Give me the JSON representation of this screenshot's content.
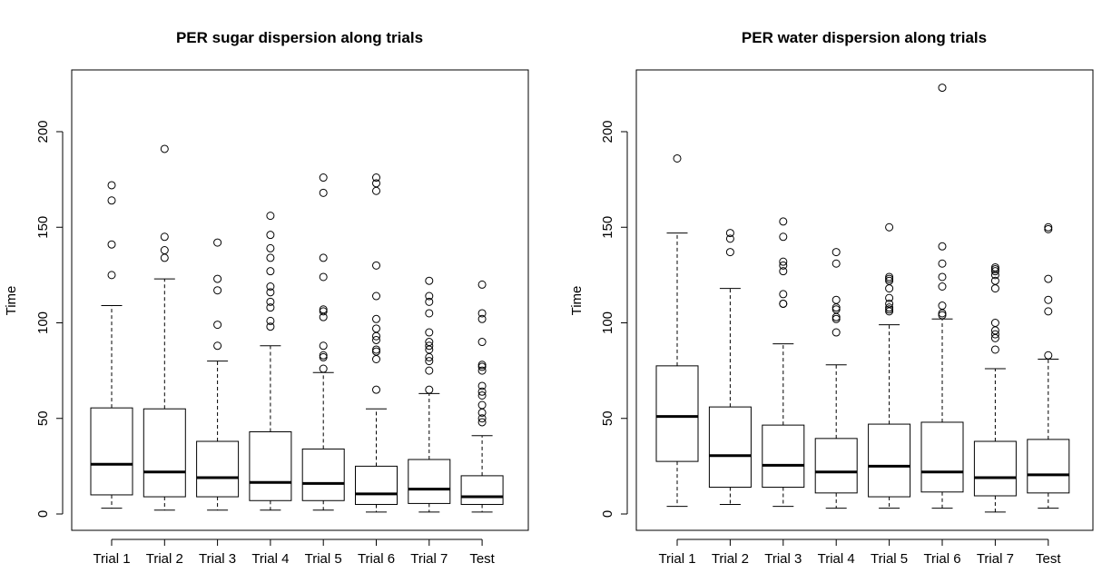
{
  "chart_data": [
    {
      "type": "box",
      "title": "PER sugar dispersion along trials",
      "xlabel": "",
      "ylabel": "Time",
      "ylim": [
        0,
        230
      ],
      "yticks": [
        0,
        50,
        100,
        150,
        200
      ],
      "categories": [
        "Trial 1",
        "Trial 2",
        "Trial 3",
        "Trial 4",
        "Trial 5",
        "Trial 6",
        "Trial 7",
        "Test"
      ],
      "boxes": [
        {
          "min": 3,
          "q1": 10,
          "median": 26,
          "q3": 55.5,
          "max": 109,
          "outliers": [
            125,
            141,
            164,
            172
          ]
        },
        {
          "min": 2,
          "q1": 9,
          "median": 22,
          "q3": 55,
          "max": 123,
          "outliers": [
            134,
            138,
            145,
            191
          ]
        },
        {
          "min": 2,
          "q1": 9,
          "median": 19,
          "q3": 38,
          "max": 80,
          "outliers": [
            88,
            99,
            117,
            123,
            142
          ]
        },
        {
          "min": 2,
          "q1": 7,
          "median": 16.5,
          "q3": 43,
          "max": 88,
          "outliers": [
            98,
            101,
            108,
            111,
            116,
            119,
            127,
            134,
            139,
            146,
            156
          ]
        },
        {
          "min": 2,
          "q1": 7,
          "median": 16,
          "q3": 34,
          "max": 74,
          "outliers": [
            76,
            82,
            83,
            88,
            103,
            106,
            107,
            124,
            134,
            168,
            176
          ]
        },
        {
          "min": 1,
          "q1": 5,
          "median": 10.5,
          "q3": 25,
          "max": 55,
          "outliers": [
            65,
            81,
            85,
            86,
            91,
            93,
            97,
            102,
            114,
            130,
            169,
            173,
            176
          ]
        },
        {
          "min": 1,
          "q1": 5.5,
          "median": 13,
          "q3": 28.5,
          "max": 63,
          "outliers": [
            65,
            75,
            80,
            82,
            86,
            88,
            90,
            95,
            105,
            111,
            114,
            122
          ]
        },
        {
          "min": 1,
          "q1": 5,
          "median": 9,
          "q3": 20,
          "max": 41,
          "outliers": [
            48,
            50,
            53,
            57,
            62,
            64,
            67,
            75,
            77,
            78,
            90,
            102,
            105,
            120
          ]
        }
      ]
    },
    {
      "type": "box",
      "title": "PER water dispersion along trials",
      "xlabel": "",
      "ylabel": "Time",
      "ylim": [
        0,
        230
      ],
      "yticks": [
        0,
        50,
        100,
        150,
        200
      ],
      "categories": [
        "Trial 1",
        "Trial 2",
        "Trial 3",
        "Trial 4",
        "Trial 5",
        "Trial 6",
        "Trial 7",
        "Test"
      ],
      "boxes": [
        {
          "min": 4,
          "q1": 27.5,
          "median": 51,
          "q3": 77.5,
          "max": 147,
          "outliers": [
            186
          ]
        },
        {
          "min": 5,
          "q1": 14,
          "median": 30.5,
          "q3": 56,
          "max": 118,
          "outliers": [
            137,
            144,
            147
          ]
        },
        {
          "min": 4,
          "q1": 14,
          "median": 25.5,
          "q3": 46.5,
          "max": 89,
          "outliers": [
            110,
            110,
            115,
            127,
            130,
            132,
            145,
            153
          ]
        },
        {
          "min": 3,
          "q1": 11,
          "median": 22,
          "q3": 39.5,
          "max": 78,
          "outliers": [
            95,
            102,
            103,
            107,
            108,
            112,
            131,
            137
          ]
        },
        {
          "min": 3,
          "q1": 9,
          "median": 25,
          "q3": 47,
          "max": 99,
          "outliers": [
            106,
            107,
            108,
            110,
            113,
            118,
            122,
            123,
            124,
            150
          ]
        },
        {
          "min": 3,
          "q1": 11.5,
          "median": 22,
          "q3": 48,
          "max": 102,
          "outliers": [
            104,
            105,
            109,
            119,
            124,
            131,
            140,
            223
          ]
        },
        {
          "min": 1,
          "q1": 9.5,
          "median": 19,
          "q3": 38,
          "max": 76,
          "outliers": [
            86,
            92,
            94,
            96,
            100,
            118,
            122,
            125,
            127,
            128,
            129
          ]
        },
        {
          "min": 3,
          "q1": 11,
          "median": 20.5,
          "q3": 39,
          "max": 81,
          "outliers": [
            83,
            106,
            112,
            123,
            149,
            150
          ]
        }
      ]
    }
  ]
}
